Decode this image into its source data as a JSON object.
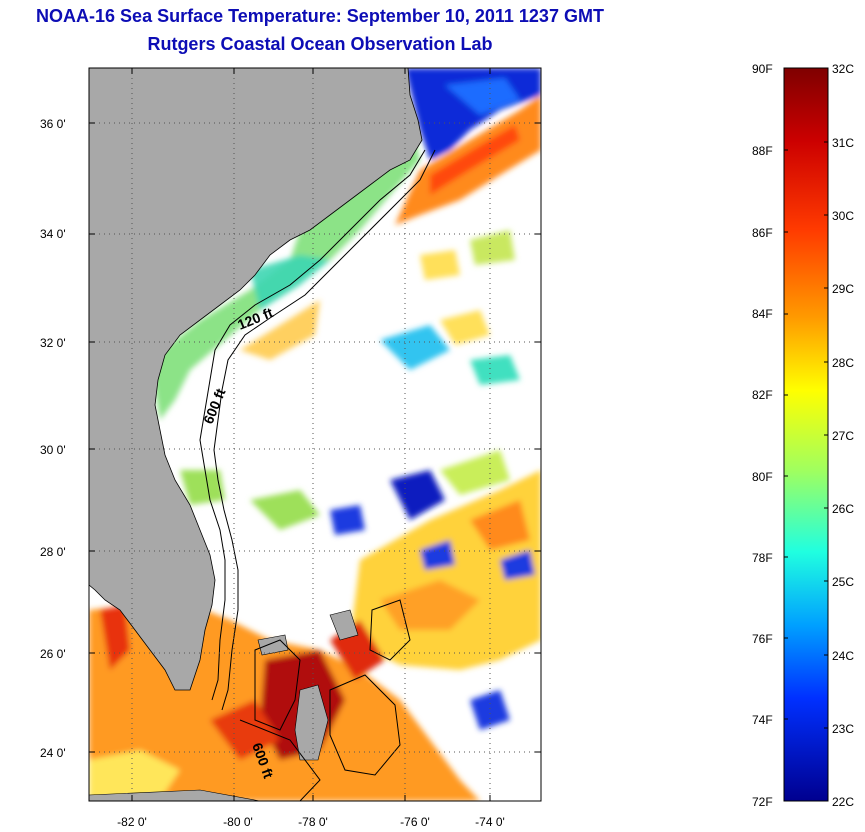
{
  "title": {
    "line1": "NOAA-16 Sea Surface Temperature:  September 10, 2011 1237 GMT",
    "line2": "Rutgers Coastal Ocean Observation Lab"
  },
  "map": {
    "lat_labels": [
      "36 0'",
      "34 0'",
      "32 0'",
      "30 0'",
      "28 0'",
      "26 0'",
      "24 0'"
    ],
    "lon_labels": [
      "-82 0'",
      "-80 0'",
      "-78 0'",
      "-76 0'",
      "-74 0'"
    ],
    "contour_labels": [
      "120 ft",
      "600 ft",
      "600 ft"
    ],
    "colors": {
      "land": "#a8a8a8",
      "cloud": "#ffffff",
      "grid": "#555555"
    }
  },
  "colorbar": {
    "fahrenheit_labels": [
      "90F",
      "88F",
      "86F",
      "84F",
      "82F",
      "80F",
      "78F",
      "76F",
      "74F",
      "72F"
    ],
    "celsius_labels": [
      "32C",
      "31C",
      "30C",
      "29C",
      "28C",
      "27C",
      "26C",
      "25C",
      "24C",
      "23C",
      "22C"
    ],
    "colors": [
      "#7f0000",
      "#ff0000",
      "#ff8000",
      "#ffff00",
      "#80ff80",
      "#00ffff",
      "#0080ff",
      "#0000ff",
      "#00008f"
    ]
  }
}
